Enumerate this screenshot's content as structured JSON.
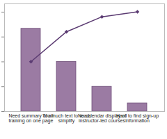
{
  "chart_data": {
    "type": "bar",
    "categories": [
      "Need summary of all training on one page",
      "Too much text to read; simplify",
      "No calendar display of instructor-led courses",
      "Hard to find sign-up information"
    ],
    "series": [
      {
        "type": "bar",
        "color": "#9b7ba3",
        "values": [
          40,
          24,
          12,
          4
        ]
      },
      {
        "type": "line",
        "axis": "y2",
        "color": "#5b3b72",
        "marker": "diamond",
        "values": [
          50,
          80,
          95,
          100
        ]
      }
    ],
    "ylim": [
      0,
      52
    ],
    "yticks": [
      0,
      12,
      24,
      36,
      48
    ],
    "y2lim": [
      0,
      108
    ],
    "tick_labels": "x",
    "grid": false
  }
}
